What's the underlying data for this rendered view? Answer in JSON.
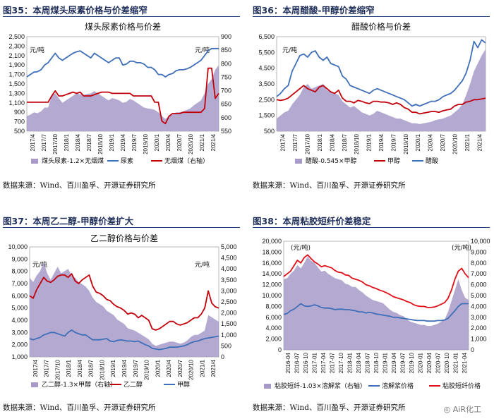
{
  "figures": [
    {
      "title": "图35：本周煤头尿素价格与价差缩窄",
      "source": "数据来源：Wind、百川盈孚、开源证券研究所"
    },
    {
      "title": "图36：本周醋酸-甲醇价差缩窄",
      "source": "数据来源：Wind、百川盈孚、开源证券研究所"
    },
    {
      "title": "图37：本周乙二醇-甲醇价差扩大",
      "source": "数据来源：Wind、百川盈孚、开源证券研究所"
    },
    {
      "title": "图38：本周粘胶短纤价差稳定",
      "source": "数据来源：Wind、百川盈孚、开源证券研究所"
    }
  ],
  "watermark": "AiR化工",
  "chart_data": [
    {
      "type": "area",
      "title": "煤头尿素价格与价差",
      "unit_left": "元/吨",
      "unit_right": "元/吨",
      "left_ticks": [
        "500",
        "700",
        "900",
        "1,100",
        "1,300",
        "1,500",
        "1,700",
        "1,900",
        "2,100",
        "2,300",
        "2,500"
      ],
      "right_ticks": [
        "550",
        "600",
        "650",
        "700",
        "750",
        "800",
        "850",
        "900"
      ],
      "ylim_left": [
        500,
        2500
      ],
      "ylim_right": [
        550,
        925
      ],
      "x_labels": [
        "2017/4",
        "2017/7",
        "2017/10",
        "2018/1",
        "2018/4",
        "2018/7",
        "2018/10",
        "2019/1",
        "2019/4",
        "2019/7",
        "2019/10",
        "2020/1",
        "2020/4",
        "2020/7",
        "2020/10",
        "2021/1",
        "2021/4"
      ],
      "series": [
        {
          "name": "煤头尿素-1.2×无烟煤",
          "axis": "left",
          "color": "#a79ac9",
          "values": [
            820,
            850,
            900,
            880,
            920,
            1000,
            1000,
            1250,
            1300,
            1200,
            1100,
            1150,
            1200,
            1250,
            1300,
            1280,
            1270,
            1290,
            1300,
            1350,
            1300,
            1250,
            1200,
            1150,
            1200,
            1180,
            1150,
            1100,
            1120,
            1180,
            1150,
            1100,
            1050,
            1000,
            980,
            970,
            950,
            900,
            820,
            760,
            820,
            850,
            900,
            900,
            920,
            950,
            980,
            1050,
            1100,
            1150,
            1300,
            1500,
            1600,
            1800,
            1900
          ]
        },
        {
          "name": "尿素",
          "axis": "left",
          "color": "#3f6fb8",
          "values": [
            1650,
            1700,
            1750,
            1760,
            1800,
            1900,
            1950,
            2050,
            2150,
            2050,
            2000,
            2050,
            2100,
            2150,
            2180,
            2200,
            2150,
            2100,
            2050,
            2150,
            2100,
            2050,
            2000,
            1950,
            2000,
            2050,
            2050,
            1900,
            1920,
            1980,
            1980,
            1950,
            1950,
            1920,
            1850,
            1850,
            1800,
            1700,
            1700,
            1650,
            1700,
            1720,
            1780,
            1800,
            1800,
            1820,
            1850,
            1900,
            1950,
            2000,
            2100,
            2200,
            2250,
            2250,
            2250
          ]
        },
        {
          "name": "无烟煤（右轴）",
          "axis": "right",
          "color": "#c0000a",
          "values": [
            665,
            665,
            665,
            665,
            665,
            665,
            665,
            690,
            710,
            690,
            690,
            695,
            700,
            705,
            700,
            705,
            690,
            690,
            690,
            695,
            700,
            705,
            705,
            705,
            700,
            700,
            700,
            700,
            700,
            700,
            690,
            690,
            690,
            690,
            690,
            690,
            665,
            665,
            590,
            580,
            610,
            620,
            620,
            620,
            625,
            625,
            625,
            625,
            625,
            625,
            640,
            800,
            800,
            680,
            700
          ]
        }
      ],
      "legend": [
        "煤头尿素-1.2×无烟煤",
        "尿素",
        "无烟煤（右轴）"
      ]
    },
    {
      "type": "area",
      "title": "醋酸价格与价差",
      "unit_left": "元/吨",
      "left_ticks": [
        "500",
        "1,500",
        "2,500",
        "3,500",
        "4,500",
        "5,500",
        "6,500"
      ],
      "ylim_left": [
        500,
        6500
      ],
      "x_labels": [
        "2017/4",
        "2017/7",
        "2017/10",
        "2018/1",
        "2018/4",
        "2018/7",
        "2018/10",
        "2019/1",
        "2019/4",
        "2019/7",
        "2019/10",
        "2020/1",
        "2020/4",
        "2020/7",
        "2020/10",
        "2021/1",
        "2021/4"
      ],
      "series": [
        {
          "name": "醋酸-0.545×甲醇",
          "axis": "left",
          "color": "#a79ac9",
          "values": [
            1300,
            1500,
            1700,
            1800,
            2200,
            2500,
            2800,
            3300,
            3500,
            3200,
            3300,
            3400,
            3500,
            3100,
            3000,
            2900,
            2800,
            2400,
            2200,
            2000,
            2100,
            1900,
            1700,
            1600,
            1500,
            1600,
            1800,
            1700,
            1600,
            1500,
            1400,
            1300,
            1300,
            1200,
            1100,
            1000,
            1000,
            950,
            1000,
            1050,
            1100,
            1200,
            1250,
            1300,
            1400,
            1500,
            1700,
            1900,
            2200,
            2800,
            3500,
            4300,
            4800,
            5300,
            5700
          ]
        },
        {
          "name": "甲醇",
          "axis": "left",
          "color": "#c0000a",
          "values": [
            2500,
            2450,
            2500,
            2600,
            2800,
            3000,
            3200,
            3400,
            3200,
            3100,
            3000,
            3300,
            3400,
            3200,
            3000,
            2900,
            3100,
            2600,
            2400,
            2400,
            2300,
            2450,
            2400,
            2300,
            2250,
            2400,
            2400,
            2350,
            2350,
            2300,
            2200,
            2300,
            2200,
            2000,
            1900,
            1700,
            1700,
            1600,
            1650,
            1700,
            1750,
            1750,
            1700,
            1800,
            1850,
            1900,
            2100,
            2200,
            2200,
            2350,
            2400,
            2500,
            2500,
            2550,
            2600
          ]
        },
        {
          "name": "醋酸",
          "axis": "left",
          "color": "#3f6fb8",
          "values": [
            2700,
            2900,
            3200,
            3400,
            4300,
            4800,
            5300,
            5400,
            5200,
            5500,
            5600,
            5200,
            5000,
            5200,
            4800,
            4700,
            4600,
            4000,
            3800,
            3400,
            3300,
            3200,
            3100,
            3000,
            2900,
            3100,
            3200,
            3100,
            3000,
            2900,
            2800,
            2700,
            2600,
            2500,
            2300,
            2100,
            2200,
            2100,
            2200,
            2300,
            2400,
            2400,
            2500,
            2700,
            2800,
            2900,
            3100,
            3400,
            3700,
            4200,
            5000,
            6200,
            5800,
            6300,
            6100
          ]
        }
      ],
      "legend": [
        "醋酸-0.545×甲醇",
        "甲醇",
        "醋酸"
      ]
    },
    {
      "type": "area",
      "title": "乙二醇价格与价差",
      "unit_left": "元/吨",
      "unit_right": "元/吨",
      "left_ticks": [
        "1,000",
        "2,000",
        "3,000",
        "4,000",
        "5,000",
        "6,000",
        "7,000",
        "8,000",
        "9,000",
        "10,000"
      ],
      "right_ticks": [
        "0",
        "500",
        "1,000",
        "1,500",
        "2,000",
        "2,500",
        "3,000",
        "3,500",
        "4,000",
        "4,500",
        "5,000"
      ],
      "ylim_left": [
        1000,
        10000
      ],
      "ylim_right": [
        0,
        5000
      ],
      "x_labels": [
        "2017/4",
        "2017/7",
        "2017/10",
        "2018/1",
        "2018/4",
        "2018/7",
        "2018/10",
        "2019/1",
        "2019/4",
        "2019/7",
        "2019/10",
        "2020/1",
        "2020/4",
        "2020/7",
        "2020/10",
        "2021/1",
        "2021/4"
      ],
      "series": [
        {
          "name": "乙二醇-1.3×甲醇（右轴）",
          "axis": "right",
          "color": "#a79ac9",
          "values": [
            3600,
            3400,
            3700,
            3900,
            4300,
            3800,
            3500,
            3800,
            4100,
            3800,
            3900,
            4000,
            3700,
            3600,
            3400,
            3300,
            3200,
            3000,
            2700,
            2500,
            2400,
            2300,
            2100,
            2000,
            1900,
            1700,
            1600,
            1500,
            1300,
            1250,
            1200,
            1100,
            1000,
            900,
            800,
            600,
            500,
            550,
            600,
            650,
            700,
            700,
            650,
            600,
            650,
            750,
            900,
            1000,
            1000,
            1100,
            1200,
            1900,
            1800,
            1700,
            1600
          ]
        },
        {
          "name": "乙二醇",
          "axis": "left",
          "color": "#c0000a",
          "values": [
            6000,
            5800,
            6500,
            7000,
            7500,
            7200,
            7100,
            7300,
            7600,
            7700,
            7700,
            7500,
            7800,
            7200,
            7000,
            7300,
            7500,
            7700,
            6800,
            6300,
            6200,
            6000,
            5700,
            5600,
            5300,
            5100,
            5000,
            4800,
            4500,
            4600,
            4500,
            4200,
            4400,
            4200,
            4000,
            3300,
            3200,
            3300,
            3500,
            3700,
            3900,
            3900,
            3700,
            3600,
            3700,
            3800,
            4000,
            4200,
            4200,
            4500,
            5000,
            6400,
            5400,
            5100,
            5000
          ]
        },
        {
          "name": "甲醇",
          "axis": "left",
          "color": "#3f6fb8",
          "values": [
            2500,
            2400,
            2500,
            2600,
            2800,
            2900,
            3000,
            3000,
            2900,
            2800,
            2700,
            3000,
            3200,
            3000,
            2900,
            2800,
            2800,
            2600,
            2400,
            2400,
            2400,
            2450,
            2500,
            2300,
            2250,
            2350,
            2400,
            2350,
            2300,
            2300,
            2250,
            2300,
            2150,
            2000,
            1900,
            1700,
            1650,
            1600,
            1650,
            1700,
            1800,
            1800,
            1800,
            1850,
            1900,
            2000,
            2150,
            2250,
            2300,
            2400,
            2500,
            2550,
            2600,
            2650,
            2700
          ]
        }
      ],
      "legend": [
        "乙二醇-1.3×甲醇（右轴）",
        "乙二醇",
        "甲醇"
      ]
    },
    {
      "type": "area",
      "title": "",
      "unit_left": "(元/吨)",
      "unit_right": "(元/吨)",
      "left_ticks": [
        "0",
        "2,000",
        "4,000",
        "6,000",
        "8,000",
        "10,000",
        "12,000",
        "14,000",
        "16,000",
        "18,000",
        "20,000"
      ],
      "right_ticks": [
        "0",
        "1,000",
        "2,000",
        "3,000",
        "4,000",
        "5,000",
        "6,000",
        "7,000",
        "8,000",
        "9,000",
        "10,000"
      ],
      "ylim_left": [
        0,
        20000
      ],
      "ylim_right": [
        0,
        10000
      ],
      "x_labels": [
        "2016-04",
        "2016-07",
        "2016-10",
        "2017-01",
        "2017-04",
        "2017-07",
        "2017-10",
        "2018-01",
        "2018-04",
        "2018-07",
        "2018-10",
        "2019-01",
        "2019-04",
        "2019-07",
        "2019-10",
        "2020-01",
        "2020-04",
        "2020-07",
        "2020-10",
        "2021-01",
        "2021-04"
      ],
      "series": [
        {
          "name": "粘胶短纤-1.03×溶解浆（右轴）",
          "axis": "right",
          "color": "#a79ac9",
          "values": [
            6500,
            6600,
            7000,
            7300,
            7800,
            7500,
            8000,
            8600,
            8200,
            8000,
            7600,
            7200,
            7300,
            7000,
            6800,
            6600,
            6500,
            6400,
            6100,
            6000,
            5800,
            5800,
            5500,
            5300,
            5000,
            4800,
            4600,
            4500,
            4400,
            4300,
            4000,
            3700,
            3500,
            3400,
            3200,
            3100,
            2800,
            2600,
            2500,
            2400,
            2300,
            2300,
            2200,
            2200,
            2300,
            2400,
            2600,
            2800,
            3500,
            4500,
            5500,
            6500,
            5500,
            4800,
            4600
          ]
        },
        {
          "name": "溶解浆价格",
          "axis": "left",
          "color": "#3f6fb8",
          "values": [
            6500,
            6700,
            7200,
            7500,
            8000,
            8500,
            8100,
            8000,
            8100,
            8300,
            8100,
            7800,
            7700,
            7700,
            7600,
            7400,
            7500,
            7500,
            7400,
            7400,
            7300,
            7200,
            7000,
            7000,
            6800,
            6900,
            6800,
            6600,
            6500,
            6400,
            6300,
            6200,
            6000,
            6000,
            5900,
            5800,
            5700,
            5600,
            5500,
            5400,
            5400,
            5400,
            5300,
            5300,
            5300,
            5400,
            5400,
            5500,
            5800,
            6500,
            7200,
            8000,
            8500,
            8500,
            8500
          ]
        },
        {
          "name": "粘胶短纤价格",
          "axis": "left",
          "color": "#e0101a",
          "values": [
            13500,
            14000,
            14500,
            15500,
            16500,
            16000,
            17000,
            17500,
            16800,
            16200,
            15800,
            15300,
            15500,
            15300,
            15100,
            14600,
            14300,
            14200,
            13800,
            13700,
            13200,
            13000,
            12800,
            12500,
            12000,
            11800,
            11500,
            11300,
            11000,
            10800,
            10500,
            10200,
            9800,
            9600,
            9400,
            9200,
            8900,
            8700,
            8300,
            8100,
            8000,
            8000,
            7800,
            7800,
            7900,
            8100,
            8400,
            8700,
            9500,
            11000,
            13000,
            14500,
            15000,
            14000,
            13300
          ]
        }
      ],
      "legend": [
        "粘胶短纤-1.03×溶解浆（右轴）",
        "溶解浆价格",
        "粘胶短纤价格"
      ]
    }
  ]
}
